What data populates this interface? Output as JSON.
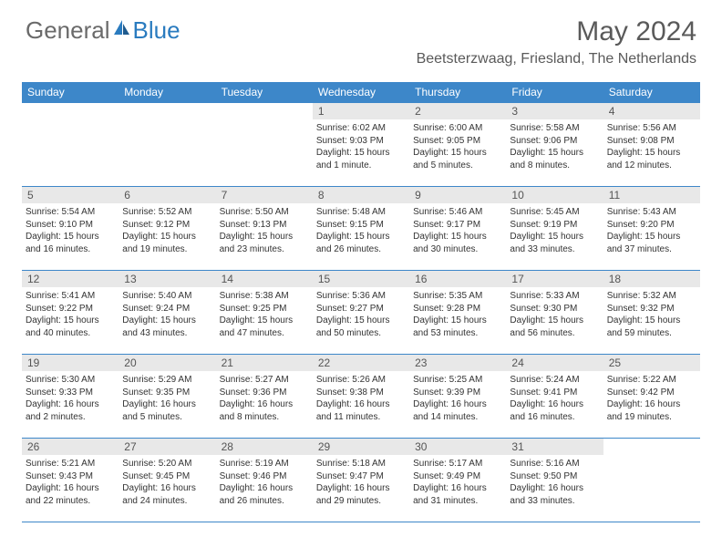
{
  "brand": {
    "part1": "General",
    "part2": "Blue"
  },
  "title": "May 2024",
  "location": "Beetsterzwaag, Friesland, The Netherlands",
  "colors": {
    "header_bg": "#3d87c9",
    "header_text": "#ffffff",
    "daynum_bg": "#e8e8e8",
    "border": "#3d87c9",
    "text": "#333333",
    "brand_gray": "#6a6a6a",
    "brand_blue": "#2a7bbf"
  },
  "weekdays": [
    "Sunday",
    "Monday",
    "Tuesday",
    "Wednesday",
    "Thursday",
    "Friday",
    "Saturday"
  ],
  "weeks": [
    [
      null,
      null,
      null,
      {
        "n": "1",
        "sr": "6:02 AM",
        "ss": "9:03 PM",
        "dl": "15 hours and 1 minute."
      },
      {
        "n": "2",
        "sr": "6:00 AM",
        "ss": "9:05 PM",
        "dl": "15 hours and 5 minutes."
      },
      {
        "n": "3",
        "sr": "5:58 AM",
        "ss": "9:06 PM",
        "dl": "15 hours and 8 minutes."
      },
      {
        "n": "4",
        "sr": "5:56 AM",
        "ss": "9:08 PM",
        "dl": "15 hours and 12 minutes."
      }
    ],
    [
      {
        "n": "5",
        "sr": "5:54 AM",
        "ss": "9:10 PM",
        "dl": "15 hours and 16 minutes."
      },
      {
        "n": "6",
        "sr": "5:52 AM",
        "ss": "9:12 PM",
        "dl": "15 hours and 19 minutes."
      },
      {
        "n": "7",
        "sr": "5:50 AM",
        "ss": "9:13 PM",
        "dl": "15 hours and 23 minutes."
      },
      {
        "n": "8",
        "sr": "5:48 AM",
        "ss": "9:15 PM",
        "dl": "15 hours and 26 minutes."
      },
      {
        "n": "9",
        "sr": "5:46 AM",
        "ss": "9:17 PM",
        "dl": "15 hours and 30 minutes."
      },
      {
        "n": "10",
        "sr": "5:45 AM",
        "ss": "9:19 PM",
        "dl": "15 hours and 33 minutes."
      },
      {
        "n": "11",
        "sr": "5:43 AM",
        "ss": "9:20 PM",
        "dl": "15 hours and 37 minutes."
      }
    ],
    [
      {
        "n": "12",
        "sr": "5:41 AM",
        "ss": "9:22 PM",
        "dl": "15 hours and 40 minutes."
      },
      {
        "n": "13",
        "sr": "5:40 AM",
        "ss": "9:24 PM",
        "dl": "15 hours and 43 minutes."
      },
      {
        "n": "14",
        "sr": "5:38 AM",
        "ss": "9:25 PM",
        "dl": "15 hours and 47 minutes."
      },
      {
        "n": "15",
        "sr": "5:36 AM",
        "ss": "9:27 PM",
        "dl": "15 hours and 50 minutes."
      },
      {
        "n": "16",
        "sr": "5:35 AM",
        "ss": "9:28 PM",
        "dl": "15 hours and 53 minutes."
      },
      {
        "n": "17",
        "sr": "5:33 AM",
        "ss": "9:30 PM",
        "dl": "15 hours and 56 minutes."
      },
      {
        "n": "18",
        "sr": "5:32 AM",
        "ss": "9:32 PM",
        "dl": "15 hours and 59 minutes."
      }
    ],
    [
      {
        "n": "19",
        "sr": "5:30 AM",
        "ss": "9:33 PM",
        "dl": "16 hours and 2 minutes."
      },
      {
        "n": "20",
        "sr": "5:29 AM",
        "ss": "9:35 PM",
        "dl": "16 hours and 5 minutes."
      },
      {
        "n": "21",
        "sr": "5:27 AM",
        "ss": "9:36 PM",
        "dl": "16 hours and 8 minutes."
      },
      {
        "n": "22",
        "sr": "5:26 AM",
        "ss": "9:38 PM",
        "dl": "16 hours and 11 minutes."
      },
      {
        "n": "23",
        "sr": "5:25 AM",
        "ss": "9:39 PM",
        "dl": "16 hours and 14 minutes."
      },
      {
        "n": "24",
        "sr": "5:24 AM",
        "ss": "9:41 PM",
        "dl": "16 hours and 16 minutes."
      },
      {
        "n": "25",
        "sr": "5:22 AM",
        "ss": "9:42 PM",
        "dl": "16 hours and 19 minutes."
      }
    ],
    [
      {
        "n": "26",
        "sr": "5:21 AM",
        "ss": "9:43 PM",
        "dl": "16 hours and 22 minutes."
      },
      {
        "n": "27",
        "sr": "5:20 AM",
        "ss": "9:45 PM",
        "dl": "16 hours and 24 minutes."
      },
      {
        "n": "28",
        "sr": "5:19 AM",
        "ss": "9:46 PM",
        "dl": "16 hours and 26 minutes."
      },
      {
        "n": "29",
        "sr": "5:18 AM",
        "ss": "9:47 PM",
        "dl": "16 hours and 29 minutes."
      },
      {
        "n": "30",
        "sr": "5:17 AM",
        "ss": "9:49 PM",
        "dl": "16 hours and 31 minutes."
      },
      {
        "n": "31",
        "sr": "5:16 AM",
        "ss": "9:50 PM",
        "dl": "16 hours and 33 minutes."
      },
      null
    ]
  ],
  "labels": {
    "sunrise": "Sunrise: ",
    "sunset": "Sunset: ",
    "daylight": "Daylight: "
  }
}
